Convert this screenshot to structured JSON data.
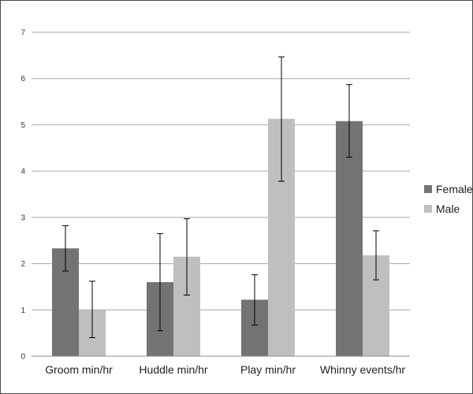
{
  "chart_data": {
    "type": "bar",
    "title": "",
    "xlabel": "",
    "ylabel": "",
    "categories": [
      "Groom min/hr",
      "Huddle min/hr",
      "Play min/hr",
      "Whinny events/hr"
    ],
    "series": [
      {
        "name": "Female",
        "color": "#737373",
        "values": [
          2.33,
          1.6,
          1.22,
          5.08
        ],
        "err_low": [
          1.84,
          0.55,
          0.67,
          4.3
        ],
        "err_high": [
          2.82,
          2.65,
          1.76,
          5.87
        ]
      },
      {
        "name": "Male",
        "color": "#bfbfbf",
        "values": [
          1.0,
          2.15,
          5.13,
          2.18
        ],
        "err_low": [
          0.4,
          1.32,
          3.78,
          1.65
        ],
        "err_high": [
          1.62,
          2.97,
          6.47,
          2.71
        ]
      }
    ],
    "ylim": [
      0,
      7
    ],
    "yticks": [
      "0",
      "1",
      "2",
      "3",
      "4",
      "5",
      "6",
      "7"
    ],
    "grid": true,
    "legend_position": "right",
    "gridline_color": "#a6a6a6",
    "errorbar_color": "#000000"
  }
}
